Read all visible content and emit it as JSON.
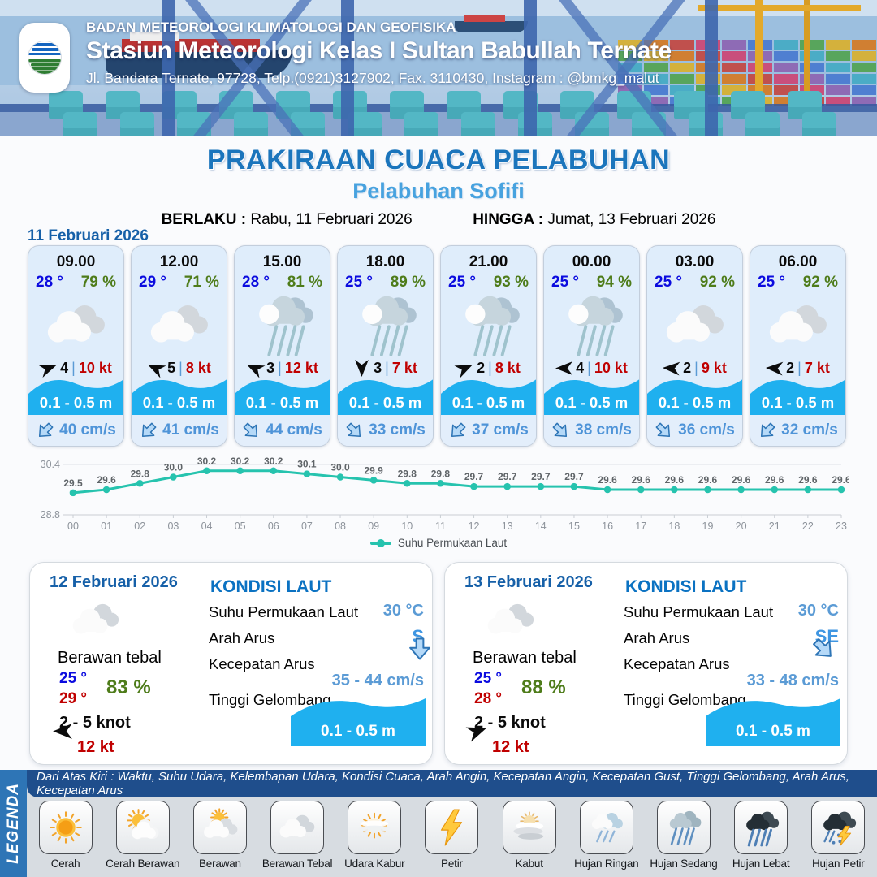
{
  "header": {
    "logo_text": "BMKG",
    "org_line": "BADAN METEOROLOGI KLIMATOLOGI DAN GEOFISIKA",
    "station_line": "Stasiun Meteorologi Kelas I Sultan Babullah Ternate",
    "address_line": "Jl. Bandara Ternate, 97728, Telp.(0921)3127902, Fax. 3110430, Instagram : @bmkg_malut"
  },
  "title": {
    "main": "PRAKIRAAN CUACA PELABUHAN",
    "subtitle": "Pelabuhan Sofifi",
    "valid_label": "BERLAKU :",
    "valid_value": "Rabu, 11 Februari 2026",
    "until_label": "HINGGA :",
    "until_value": "Jumat, 13 Februari 2026"
  },
  "day_label": "11 Februari 2026",
  "labels": {
    "wind_separator": "|"
  },
  "hourly": [
    {
      "time": "09.00",
      "temp": "28 °",
      "humidity": "79 %",
      "icon": "berawan-tebal",
      "wind_deg": -20,
      "wind_force": "4",
      "wind_speed": "10 kt",
      "wave": "0.1 - 0.5 m",
      "current_deg": 45,
      "current_speed": "40 cm/s"
    },
    {
      "time": "12.00",
      "temp": "29 °",
      "humidity": "71 %",
      "icon": "berawan-tebal",
      "wind_deg": 205,
      "wind_force": "5",
      "wind_speed": "8 kt",
      "wave": "0.1 - 0.5 m",
      "current_deg": 45,
      "current_speed": "41 cm/s"
    },
    {
      "time": "15.00",
      "temp": "28 °",
      "humidity": "81 %",
      "icon": "hujan",
      "wind_deg": 205,
      "wind_force": "3",
      "wind_speed": "12 kt",
      "wave": "0.1 - 0.5 m",
      "current_deg": -45,
      "current_speed": "44 cm/s"
    },
    {
      "time": "18.00",
      "temp": "25 °",
      "humidity": "89 %",
      "icon": "hujan",
      "wind_deg": 90,
      "wind_force": "3",
      "wind_speed": "7 kt",
      "wave": "0.1 - 0.5 m",
      "current_deg": -45,
      "current_speed": "33 cm/s"
    },
    {
      "time": "21.00",
      "temp": "25 °",
      "humidity": "93 %",
      "icon": "hujan",
      "wind_deg": -25,
      "wind_force": "2",
      "wind_speed": "8 kt",
      "wave": "0.1 - 0.5 m",
      "current_deg": 45,
      "current_speed": "37 cm/s"
    },
    {
      "time": "00.00",
      "temp": "25 °",
      "humidity": "94 %",
      "icon": "hujan",
      "wind_deg": 180,
      "wind_force": "4",
      "wind_speed": "10 kt",
      "wave": "0.1 - 0.5 m",
      "current_deg": -45,
      "current_speed": "38 cm/s"
    },
    {
      "time": "03.00",
      "temp": "25 °",
      "humidity": "92 %",
      "icon": "berawan-tebal",
      "wind_deg": 183,
      "wind_force": "2",
      "wind_speed": "9 kt",
      "wave": "0.1 - 0.5 m",
      "current_deg": -45,
      "current_speed": "36 cm/s"
    },
    {
      "time": "06.00",
      "temp": "25 °",
      "humidity": "92 %",
      "icon": "berawan-tebal",
      "wind_deg": 183,
      "wind_force": "2",
      "wind_speed": "7 kt",
      "wave": "0.1 - 0.5 m",
      "current_deg": 45,
      "current_speed": "32 cm/s"
    }
  ],
  "chart_data": {
    "type": "line",
    "x": [
      "00",
      "01",
      "02",
      "03",
      "04",
      "05",
      "06",
      "07",
      "08",
      "09",
      "10",
      "11",
      "12",
      "13",
      "14",
      "15",
      "16",
      "17",
      "18",
      "19",
      "20",
      "21",
      "22",
      "23"
    ],
    "values": [
      29.5,
      29.6,
      29.8,
      30.0,
      30.2,
      30.2,
      30.2,
      30.1,
      30.0,
      29.9,
      29.8,
      29.8,
      29.7,
      29.7,
      29.7,
      29.7,
      29.6,
      29.6,
      29.6,
      29.6,
      29.6,
      29.6,
      29.6,
      29.6
    ],
    "ylim": [
      28.8,
      30.4
    ],
    "y_tick_labels": [
      "30.4",
      "28.8"
    ],
    "legend": "Suhu Permukaan Laut",
    "line_color": "#26C3AE",
    "grid": true,
    "legend_position": "bottom",
    "title": "",
    "xlabel": "",
    "ylabel": ""
  },
  "daily": [
    {
      "date": "12 Februari 2026",
      "icon": "berawan-tebal",
      "condition": "Berawan tebal",
      "temp_min": "25 °",
      "temp_max": "29 °",
      "humidity": "83 %",
      "wind_deg": 180,
      "wind_range": "2 - 5 knot",
      "gust": "12 kt",
      "sea": {
        "heading": "KONDISI LAUT",
        "sst_label": "Suhu Permukaan Laut",
        "sst_value": "30 °C",
        "current_dir_label": "Arah Arus",
        "current_dir_deg": 0,
        "current_dir_text": "S",
        "current_speed_label": "Kecepatan Arus",
        "current_speed_value": "35 - 44 cm/s",
        "wave_label": "Tinggi Gelombang",
        "wave_value": "0.1 - 0.5 m"
      }
    },
    {
      "date": "13 Februari 2026",
      "icon": "berawan-tebal",
      "condition": "Berawan tebal",
      "temp_min": "25 °",
      "temp_max": "28 °",
      "humidity": "88 %",
      "wind_deg": -20,
      "wind_range": "2 - 5 knot",
      "gust": "12 kt",
      "sea": {
        "heading": "KONDISI LAUT",
        "sst_label": "Suhu Permukaan Laut",
        "sst_value": "30 °C",
        "current_dir_label": "Arah Arus",
        "current_dir_deg": -45,
        "current_dir_text": "SE",
        "current_speed_label": "Kecepatan Arus",
        "current_speed_value": "33 - 48 cm/s",
        "wave_label": "Tinggi Gelombang",
        "wave_value": "0.1 - 0.5 m"
      }
    }
  ],
  "legend": {
    "strip": "LEGENDA",
    "note": "Dari Atas Kiri : Waktu, Suhu Udara, Kelembapan Udara, Kondisi Cuaca, Arah Angin, Kecepatan Angin, Kecepatan Gust, Tinggi Gelombang, Arah Arus, Kecepatan Arus",
    "items": [
      {
        "label": "Cerah",
        "icon": "cerah"
      },
      {
        "label": "Cerah Berawan",
        "icon": "cerah-berawan"
      },
      {
        "label": "Berawan",
        "icon": "berawan"
      },
      {
        "label": "Berawan Tebal",
        "icon": "berawan-tebal"
      },
      {
        "label": "Udara Kabur",
        "icon": "udara-kabur"
      },
      {
        "label": "Petir",
        "icon": "petir"
      },
      {
        "label": "Kabut",
        "icon": "kabut"
      },
      {
        "label": "Hujan Ringan",
        "icon": "hujan-ringan"
      },
      {
        "label": "Hujan Sedang",
        "icon": "hujan-sedang"
      },
      {
        "label": "Hujan Lebat",
        "icon": "hujan-lebat"
      },
      {
        "label": "Hujan Petir",
        "icon": "hujan-petir"
      }
    ]
  },
  "colors": {
    "title_blue": "#1B75BC",
    "subtitle_blue": "#47A2DF",
    "temp_blue": "#0B0BDF",
    "humidity_green": "#4E7C1A",
    "speed_red": "#C00000",
    "wave_blue": "#1FB0EF",
    "current_blue": "#4F94D8",
    "chart_teal": "#26C3AE",
    "legend_bar_blue": "#1F4E8C",
    "legend_strip_blue": "#2E75B6"
  }
}
